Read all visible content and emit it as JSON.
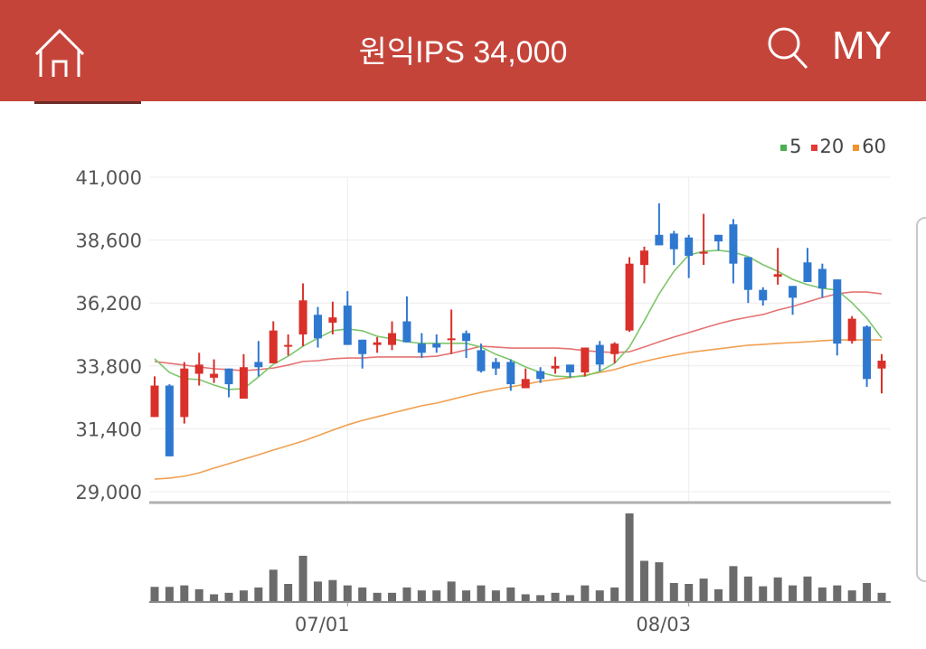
{
  "header": {
    "title": "원익IPS 34,000",
    "my_label": "MY",
    "home_icon": "home-icon",
    "search_icon": "search-icon",
    "bg_color": "#c5443a"
  },
  "chart_data": {
    "type": "candlestick",
    "ylim": [
      29000,
      41000
    ],
    "y_ticks": [
      "41,000",
      "38,600",
      "36,200",
      "33,800",
      "31,400",
      "29,000"
    ],
    "y_tick_values": [
      41000,
      38600,
      36200,
      33800,
      31400,
      29000
    ],
    "x_tick_labels": [
      {
        "label": "07/01",
        "index": 13
      },
      {
        "label": "08/03",
        "index": 36
      }
    ],
    "grid": true,
    "legend": {
      "placement": "top-right",
      "items": [
        {
          "label": "5",
          "color": "#4caf50"
        },
        {
          "label": "20",
          "color": "#e53935"
        },
        {
          "label": "60",
          "color": "#f0922e"
        }
      ]
    },
    "colors": {
      "up": "#d9302a",
      "down": "#2f78d0",
      "ma5": "#7cc66a",
      "ma20": "#e57373",
      "ma60": "#f0a050",
      "volume": "#6b6b6b"
    },
    "ohlc": [
      [
        31850,
        33400,
        31850,
        33050
      ],
      [
        33050,
        33100,
        30350,
        30350
      ],
      [
        31850,
        33950,
        31600,
        33700
      ],
      [
        33500,
        34300,
        33050,
        33850
      ],
      [
        33350,
        34050,
        33150,
        33500
      ],
      [
        33700,
        33700,
        32600,
        33100
      ],
      [
        32550,
        34250,
        32550,
        33750
      ],
      [
        33950,
        34750,
        33400,
        33750
      ],
      [
        33900,
        35500,
        33900,
        35150
      ],
      [
        34550,
        35000,
        34200,
        34600
      ],
      [
        35000,
        36950,
        34550,
        36300
      ],
      [
        35750,
        36050,
        34500,
        34850
      ],
      [
        35450,
        36250,
        35000,
        35650
      ],
      [
        36100,
        36650,
        34600,
        34600
      ],
      [
        34800,
        34800,
        33700,
        34250
      ],
      [
        34600,
        34900,
        34300,
        34700
      ],
      [
        34600,
        35500,
        34400,
        35050
      ],
      [
        35500,
        36450,
        34700,
        34700
      ],
      [
        34650,
        35050,
        34100,
        34300
      ],
      [
        34650,
        35000,
        34300,
        34500
      ],
      [
        34800,
        35950,
        34250,
        34850
      ],
      [
        35050,
        35150,
        34100,
        34750
      ],
      [
        34400,
        34650,
        33550,
        33600
      ],
      [
        33950,
        34100,
        33450,
        33700
      ],
      [
        33950,
        34050,
        32850,
        33100
      ],
      [
        32950,
        33700,
        32950,
        33300
      ],
      [
        33600,
        33750,
        33150,
        33300
      ],
      [
        33700,
        34150,
        33500,
        33800
      ],
      [
        33850,
        33850,
        33350,
        33550
      ],
      [
        33550,
        34500,
        33400,
        34500
      ],
      [
        34600,
        34750,
        33600,
        33850
      ],
      [
        34250,
        34700,
        33900,
        34650
      ],
      [
        35150,
        37950,
        35100,
        37700
      ],
      [
        37650,
        38350,
        36950,
        38200
      ],
      [
        38800,
        40000,
        38400,
        38400
      ],
      [
        38850,
        38950,
        37650,
        38250
      ],
      [
        38700,
        38800,
        37150,
        38000
      ],
      [
        38100,
        39600,
        37650,
        38150
      ],
      [
        38800,
        38800,
        38200,
        38550
      ],
      [
        39200,
        39400,
        36950,
        37700
      ],
      [
        37950,
        37950,
        36200,
        36700
      ],
      [
        36700,
        36800,
        36100,
        36300
      ],
      [
        37200,
        38300,
        36900,
        37300
      ],
      [
        36850,
        36850,
        35750,
        36400
      ],
      [
        37750,
        38300,
        37000,
        37000
      ],
      [
        37500,
        37700,
        36400,
        36750
      ],
      [
        37100,
        37100,
        34200,
        34650
      ],
      [
        34750,
        35700,
        34650,
        35600
      ],
      [
        35300,
        35350,
        33000,
        33300
      ],
      [
        33700,
        34250,
        32750,
        34000
      ]
    ],
    "ma5": [
      34070,
      33550,
      33310,
      33280,
      33070,
      32900,
      32930,
      33380,
      33860,
      34170,
      34550,
      34860,
      35140,
      35210,
      35140,
      34930,
      34830,
      34720,
      34660,
      34660,
      34660,
      34660,
      34520,
      34240,
      34030,
      33760,
      33550,
      33410,
      33380,
      33410,
      33590,
      33900,
      34520,
      35520,
      36550,
      37410,
      38030,
      38170,
      38210,
      38140,
      37970,
      37660,
      37410,
      37100,
      36900,
      36760,
      36690,
      36210,
      35620,
      34860
    ],
    "ma20": [
      33970,
      33900,
      33830,
      33760,
      33690,
      33660,
      33620,
      33660,
      33720,
      33830,
      33970,
      34000,
      34070,
      34100,
      34100,
      34140,
      34140,
      34140,
      34140,
      34170,
      34280,
      34410,
      34550,
      34520,
      34480,
      34480,
      34480,
      34480,
      34450,
      34380,
      34340,
      34310,
      34340,
      34520,
      34720,
      34900,
      35070,
      35240,
      35410,
      35550,
      35660,
      35760,
      35930,
      36070,
      36240,
      36410,
      36550,
      36620,
      36620,
      36550
    ],
    "ma60": [
      29480,
      29520,
      29590,
      29720,
      29900,
      30070,
      30240,
      30410,
      30590,
      30760,
      30930,
      31140,
      31350,
      31550,
      31720,
      31860,
      32000,
      32140,
      32280,
      32380,
      32520,
      32660,
      32790,
      32900,
      33000,
      33100,
      33210,
      33280,
      33350,
      33450,
      33550,
      33660,
      33830,
      33970,
      34100,
      34210,
      34310,
      34380,
      34450,
      34520,
      34590,
      34620,
      34660,
      34690,
      34720,
      34760,
      34790,
      34790,
      34790,
      34790
    ],
    "volume_relative": [
      48,
      48,
      53,
      40,
      23,
      28,
      36,
      46,
      106,
      58,
      153,
      66,
      71,
      53,
      46,
      28,
      28,
      46,
      36,
      36,
      66,
      36,
      53,
      36,
      46,
      23,
      20,
      28,
      20,
      53,
      36,
      46,
      296,
      136,
      131,
      61,
      58,
      76,
      40,
      118,
      83,
      50,
      80,
      53,
      83,
      46,
      53,
      36,
      61,
      28
    ]
  }
}
